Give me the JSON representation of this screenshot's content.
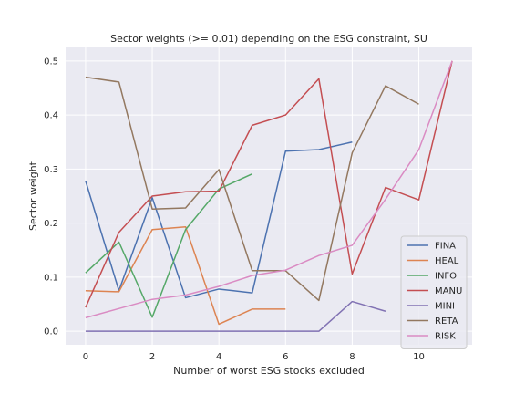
{
  "chart_data": {
    "type": "line",
    "title": "Sector weights (>= 0.01) depending on the ESG constraint, SU",
    "xlabel": "Number of worst ESG stocks excluded",
    "ylabel": "Sector weight",
    "xlim": [
      -0.6,
      11.6
    ],
    "ylim": [
      -0.025,
      0.525
    ],
    "xticks": [
      0,
      2,
      4,
      6,
      8,
      10
    ],
    "yticks": [
      0.0,
      0.1,
      0.2,
      0.3,
      0.4,
      0.5
    ],
    "ytick_labels": [
      "0.0",
      "0.1",
      "0.2",
      "0.3",
      "0.4",
      "0.5"
    ],
    "grid": true,
    "legend_position": "lower-right",
    "series": [
      {
        "name": "FINA",
        "color": "#4c72b0",
        "points": [
          [
            0,
            0.278
          ],
          [
            1,
            0.075
          ],
          [
            2,
            0.247
          ],
          [
            3,
            0.062
          ],
          [
            4,
            0.078
          ],
          [
            5,
            0.071
          ],
          [
            6,
            0.333
          ],
          [
            7,
            0.336
          ],
          [
            8,
            0.35
          ]
        ]
      },
      {
        "name": "HEAL",
        "color": "#dd8452",
        "points": [
          [
            0,
            0.075
          ],
          [
            1,
            0.073
          ],
          [
            2,
            0.188
          ],
          [
            3,
            0.193
          ],
          [
            4,
            0.013
          ],
          [
            5,
            0.041
          ],
          [
            6,
            0.041
          ]
        ]
      },
      {
        "name": "INFO",
        "color": "#55a868",
        "points": [
          [
            0,
            0.108
          ],
          [
            1,
            0.165
          ],
          [
            2,
            0.026
          ],
          [
            3,
            0.188
          ],
          [
            4,
            0.263
          ],
          [
            5,
            0.291
          ]
        ]
      },
      {
        "name": "MANU",
        "color": "#c44e52",
        "points": [
          [
            0,
            0.044
          ],
          [
            1,
            0.183
          ],
          [
            2,
            0.25
          ],
          [
            3,
            0.258
          ],
          [
            4,
            0.259
          ],
          [
            5,
            0.381
          ],
          [
            6,
            0.4
          ],
          [
            7,
            0.467
          ],
          [
            8,
            0.106
          ],
          [
            9,
            0.266
          ],
          [
            10,
            0.243
          ],
          [
            11,
            0.5
          ]
        ]
      },
      {
        "name": "MINI",
        "color": "#8172b3",
        "points": [
          [
            0,
            0.0
          ],
          [
            1,
            0.0
          ],
          [
            2,
            0.0
          ],
          [
            3,
            0.0
          ],
          [
            4,
            0.0
          ],
          [
            5,
            0.0
          ],
          [
            6,
            0.0
          ],
          [
            7,
            0.0
          ],
          [
            8,
            0.055
          ],
          [
            9,
            0.037
          ]
        ]
      },
      {
        "name": "RETA",
        "color": "#937860",
        "points": [
          [
            0,
            0.47
          ],
          [
            1,
            0.461
          ],
          [
            2,
            0.226
          ],
          [
            3,
            0.228
          ],
          [
            4,
            0.299
          ],
          [
            5,
            0.112
          ],
          [
            6,
            0.112
          ],
          [
            7,
            0.057
          ],
          [
            8,
            0.33
          ],
          [
            9,
            0.454
          ],
          [
            10,
            0.42
          ]
        ]
      },
      {
        "name": "RISK",
        "color": "#da8bc3",
        "points": [
          [
            0,
            0.025
          ],
          [
            1,
            0.042
          ],
          [
            2,
            0.059
          ],
          [
            3,
            0.067
          ],
          [
            4,
            0.083
          ],
          [
            5,
            0.103
          ],
          [
            6,
            0.113
          ],
          [
            7,
            0.14
          ],
          [
            8,
            0.159
          ],
          [
            9,
            0.244
          ],
          [
            10,
            0.336
          ],
          [
            11,
            0.5
          ]
        ]
      }
    ]
  }
}
